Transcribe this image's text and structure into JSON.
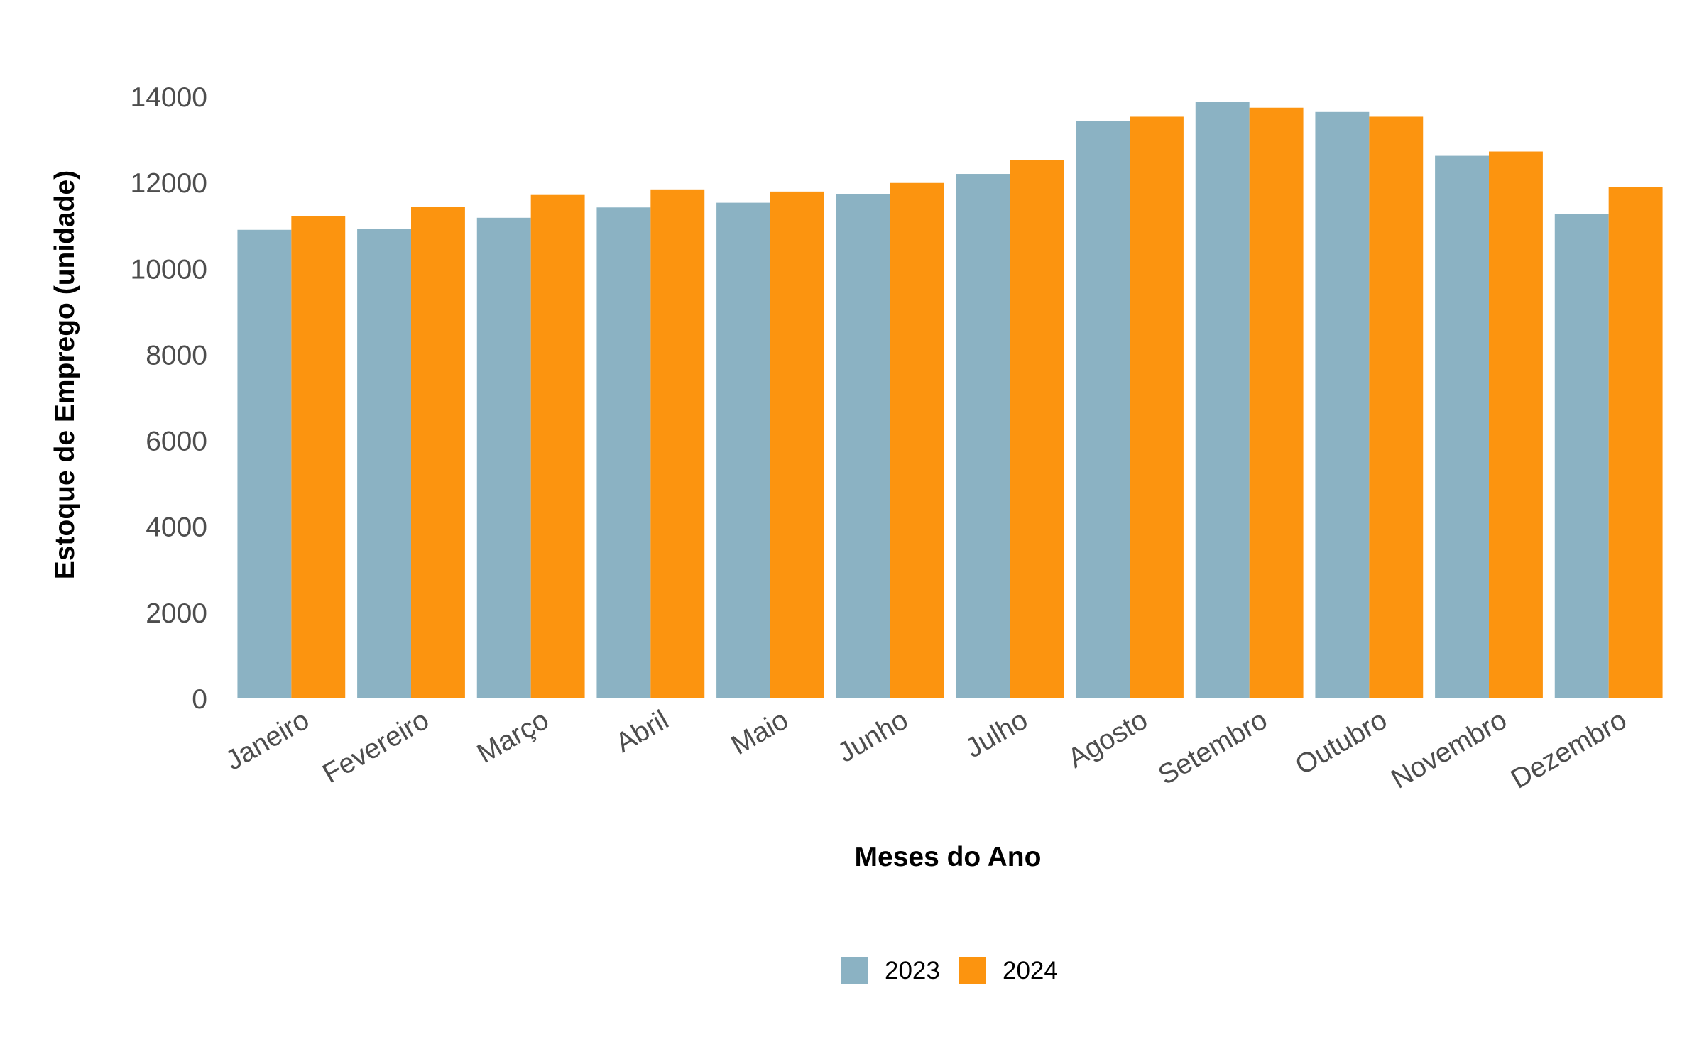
{
  "chart_data": {
    "type": "bar",
    "xlabel": "Meses do Ano",
    "ylabel": "Estoque de Emprego (unidade)",
    "categories": [
      "Janeiro",
      "Fevereiro",
      "Março",
      "Abril",
      "Maio",
      "Junho",
      "Julho",
      "Agosto",
      "Setembro",
      "Outubro",
      "Novembro",
      "Dezembro"
    ],
    "series": [
      {
        "name": "2023",
        "color": "#8bb2c3",
        "values": [
          10900,
          10920,
          11180,
          11420,
          11530,
          11730,
          12200,
          13430,
          13880,
          13640,
          12620,
          11260
        ]
      },
      {
        "name": "2024",
        "color": "#fc940f",
        "values": [
          11220,
          11440,
          11710,
          11840,
          11790,
          11990,
          12520,
          13530,
          13740,
          13530,
          12720,
          11890
        ]
      }
    ],
    "ylim": [
      0,
      14000
    ],
    "yticks": [
      0,
      2000,
      4000,
      6000,
      8000,
      10000,
      12000,
      14000
    ],
    "grid": false,
    "legend_position": "bottom"
  }
}
